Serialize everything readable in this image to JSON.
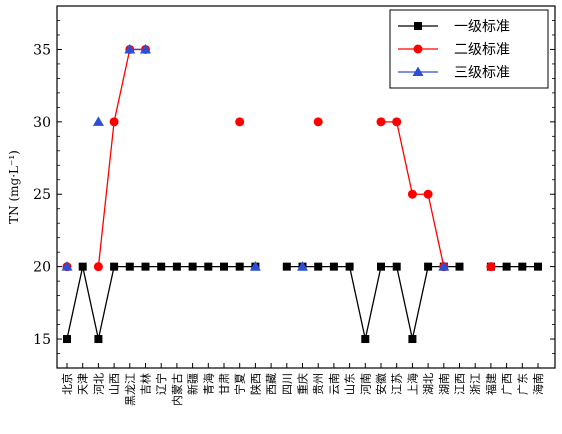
{
  "chart_data": {
    "type": "line",
    "ylabel": "TN (mg·L⁻¹)",
    "ylim": [
      13,
      38
    ],
    "yticks": [
      15,
      20,
      25,
      30,
      35
    ],
    "categories": [
      "北京",
      "天津",
      "河北",
      "山西",
      "黑龙江",
      "吉林",
      "辽宁",
      "内蒙古",
      "新疆",
      "青海",
      "甘肃",
      "宁夏",
      "陕西",
      "西藏",
      "四川",
      "重庆",
      "贵州",
      "云南",
      "山东",
      "河南",
      "安徽",
      "江苏",
      "上海",
      "湖北",
      "湖南",
      "江西",
      "浙江",
      "福建",
      "广西",
      "广东",
      "海南"
    ],
    "legend_position": "top-right",
    "grid": false,
    "series": [
      {
        "name": "一级标准",
        "color": "#000000",
        "marker": "square",
        "values": [
          15,
          20,
          15,
          20,
          20,
          20,
          20,
          20,
          20,
          20,
          20,
          20,
          20,
          null,
          20,
          20,
          20,
          20,
          20,
          15,
          20,
          20,
          15,
          20,
          20,
          20,
          null,
          20,
          20,
          20,
          20
        ]
      },
      {
        "name": "二级标准",
        "color": "#ff0000",
        "marker": "circle",
        "values": [
          20,
          null,
          20,
          30,
          35,
          35,
          null,
          null,
          null,
          null,
          null,
          30,
          null,
          null,
          null,
          null,
          30,
          null,
          null,
          null,
          30,
          30,
          25,
          25,
          20,
          null,
          null,
          20,
          null,
          null,
          null
        ]
      },
      {
        "name": "三级标准",
        "color": "#2b4fd6",
        "marker": "triangle",
        "values": [
          20,
          null,
          30,
          null,
          35,
          35,
          null,
          null,
          null,
          null,
          null,
          null,
          20,
          null,
          null,
          20,
          null,
          null,
          null,
          null,
          null,
          null,
          null,
          null,
          20,
          null,
          null,
          null,
          null,
          null,
          null
        ]
      }
    ]
  }
}
